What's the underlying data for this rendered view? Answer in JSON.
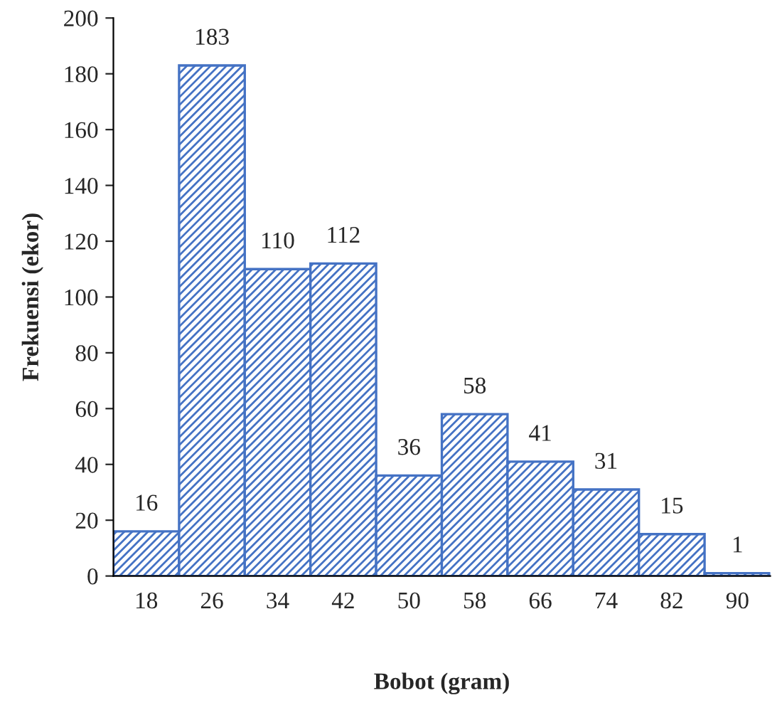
{
  "chart_data": {
    "type": "bar",
    "xlabel": "Bobot (gram)",
    "ylabel": "Frekuensi (ekor)",
    "categories": [
      "18",
      "26",
      "34",
      "42",
      "50",
      "58",
      "66",
      "74",
      "82",
      "90"
    ],
    "values": [
      16,
      183,
      110,
      112,
      36,
      58,
      41,
      31,
      15,
      1
    ],
    "color": "#4472c4",
    "ylim": [
      0,
      200
    ],
    "yticks": [
      0,
      20,
      40,
      60,
      80,
      100,
      120,
      140,
      160,
      180,
      200
    ],
    "data_labels": true,
    "grid": false,
    "legend": false
  }
}
